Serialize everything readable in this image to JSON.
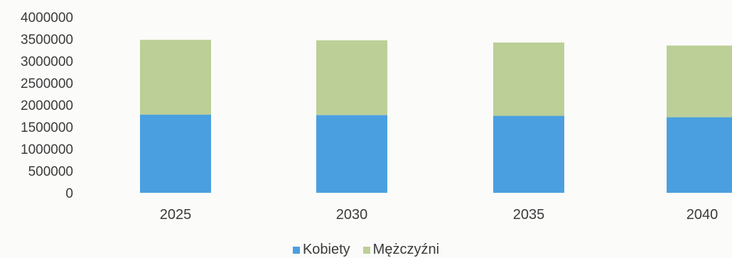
{
  "chart_data": {
    "type": "bar",
    "stacked": true,
    "categories": [
      "2025",
      "2030",
      "2035",
      "2040"
    ],
    "series": [
      {
        "name": "Kobiety",
        "color": "#4a9fe0",
        "values": [
          1780000,
          1770000,
          1750000,
          1720000
        ]
      },
      {
        "name": "Mężczyźni",
        "color": "#bccf97",
        "values": [
          1700000,
          1700000,
          1670000,
          1630000
        ]
      }
    ],
    "y_ticks": [
      "0",
      "500000",
      "1000000",
      "1500000",
      "2000000",
      "2500000",
      "3000000",
      "3500000",
      "4000000"
    ],
    "ylim": [
      0,
      4000000
    ],
    "grid": false,
    "legend_position": "bottom"
  }
}
